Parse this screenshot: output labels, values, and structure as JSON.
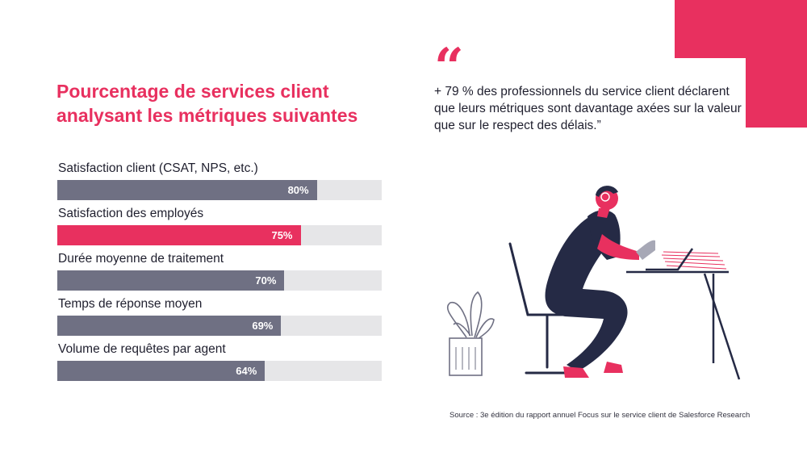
{
  "title": "Pourcentage de services client analysant les métriques suivantes",
  "quote": {
    "mark": "“",
    "text": "+ 79 % des professionnels du service client déclarent que leurs métriques sont davantage axées sur la valeur que sur le respect des délais.”"
  },
  "source": "Source : 3e édition du rapport annuel Focus sur le service client de Salesforce Research",
  "colors": {
    "accent": "#e8305f",
    "bar": "#6f7083",
    "track": "#e6e6e8",
    "ink": "#252a45"
  },
  "chart_data": {
    "type": "bar",
    "orientation": "horizontal",
    "title": "Pourcentage de services client analysant les métriques suivantes",
    "xlim": [
      0,
      100
    ],
    "grid": false,
    "categories": [
      "Satisfaction client (CSAT, NPS, etc.)",
      "Satisfaction des employés",
      "Durée moyenne de traitement",
      "Temps de réponse moyen",
      "Volume de requêtes par agent"
    ],
    "values": [
      80,
      75,
      70,
      69,
      64
    ],
    "value_labels": [
      "80%",
      "75%",
      "70%",
      "69%",
      "64%"
    ],
    "highlight_index": 1
  }
}
